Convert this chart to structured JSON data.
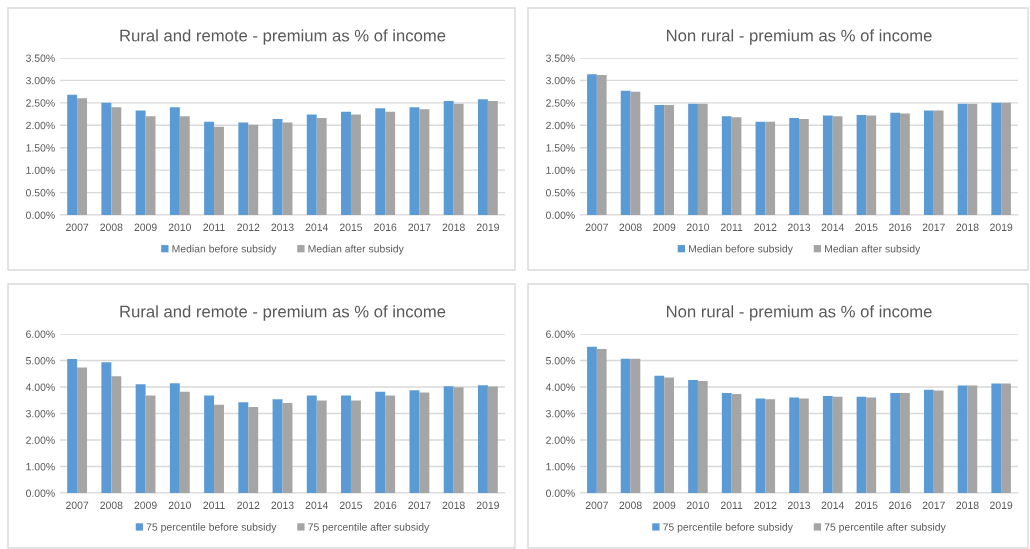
{
  "chart_data": [
    {
      "type": "bar",
      "title": "Rural and remote - premium as % of income",
      "categories": [
        "2007",
        "2008",
        "2009",
        "2010",
        "2011",
        "2012",
        "2013",
        "2014",
        "2015",
        "2016",
        "2017",
        "2018",
        "2019"
      ],
      "series": [
        {
          "name": "Median before subsidy",
          "color": "#5b9bd5",
          "values": [
            2.68,
            2.5,
            2.33,
            2.4,
            2.08,
            2.06,
            2.14,
            2.24,
            2.3,
            2.38,
            2.4,
            2.54,
            2.58
          ]
        },
        {
          "name": "Median after subsidy",
          "color": "#a5a5a5",
          "values": [
            2.6,
            2.4,
            2.2,
            2.2,
            1.97,
            2.01,
            2.06,
            2.16,
            2.24,
            2.3,
            2.36,
            2.48,
            2.54
          ]
        }
      ],
      "ylim": [
        0,
        3.5
      ],
      "yticks": [
        {
          "value": 0,
          "label": "0.00%"
        },
        {
          "value": 0.5,
          "label": "0.50%"
        },
        {
          "value": 1,
          "label": "1.00%"
        },
        {
          "value": 1.5,
          "label": "1.50%"
        },
        {
          "value": 2,
          "label": "2.00%"
        },
        {
          "value": 2.5,
          "label": "2.50%"
        },
        {
          "value": 3,
          "label": "3.00%"
        },
        {
          "value": 3.5,
          "label": "3.50%"
        }
      ],
      "grid": "y",
      "legend": "bottom"
    },
    {
      "type": "bar",
      "title": "Non rural - premium as % of income",
      "categories": [
        "2007",
        "2008",
        "2009",
        "2010",
        "2011",
        "2012",
        "2013",
        "2014",
        "2015",
        "2016",
        "2017",
        "2018",
        "2019"
      ],
      "series": [
        {
          "name": "Median before subsidy",
          "color": "#5b9bd5",
          "values": [
            3.14,
            2.77,
            2.45,
            2.48,
            2.2,
            2.08,
            2.16,
            2.22,
            2.23,
            2.28,
            2.33,
            2.48,
            2.5
          ]
        },
        {
          "name": "Median after subsidy",
          "color": "#a5a5a5",
          "values": [
            3.12,
            2.75,
            2.45,
            2.48,
            2.18,
            2.08,
            2.14,
            2.2,
            2.22,
            2.26,
            2.33,
            2.48,
            2.5
          ]
        }
      ],
      "ylim": [
        0,
        3.5
      ],
      "yticks": [
        {
          "value": 0,
          "label": "0.00%"
        },
        {
          "value": 0.5,
          "label": "0.50%"
        },
        {
          "value": 1,
          "label": "1.00%"
        },
        {
          "value": 1.5,
          "label": "1.50%"
        },
        {
          "value": 2,
          "label": "2.00%"
        },
        {
          "value": 2.5,
          "label": "2.50%"
        },
        {
          "value": 3,
          "label": "3.00%"
        },
        {
          "value": 3.5,
          "label": "3.50%"
        }
      ],
      "grid": "y",
      "legend": "bottom"
    },
    {
      "type": "bar",
      "title": "Rural and remote - premium as % of income",
      "categories": [
        "2007",
        "2008",
        "2009",
        "2010",
        "2011",
        "2012",
        "2013",
        "2014",
        "2015",
        "2016",
        "2017",
        "2018",
        "2019"
      ],
      "series": [
        {
          "name": "75 percentile before subsidy",
          "color": "#5b9bd5",
          "values": [
            5.06,
            4.93,
            4.1,
            4.14,
            3.68,
            3.42,
            3.54,
            3.68,
            3.68,
            3.82,
            3.88,
            4.03,
            4.07
          ]
        },
        {
          "name": "75 percentile after subsidy",
          "color": "#a5a5a5",
          "values": [
            4.74,
            4.41,
            3.68,
            3.82,
            3.33,
            3.25,
            3.4,
            3.49,
            3.49,
            3.68,
            3.79,
            3.99,
            4.02
          ]
        }
      ],
      "ylim": [
        0,
        6
      ],
      "yticks": [
        {
          "value": 0,
          "label": "0.00%"
        },
        {
          "value": 1,
          "label": "1.00%"
        },
        {
          "value": 2,
          "label": "2.00%"
        },
        {
          "value": 3,
          "label": "3.00%"
        },
        {
          "value": 4,
          "label": "4.00%"
        },
        {
          "value": 5,
          "label": "5.00%"
        },
        {
          "value": 6,
          "label": "6.00%"
        }
      ],
      "grid": "y",
      "legend": "bottom"
    },
    {
      "type": "bar",
      "title": "Non rural - premium as % of income",
      "categories": [
        "2007",
        "2008",
        "2009",
        "2010",
        "2011",
        "2012",
        "2013",
        "2014",
        "2015",
        "2016",
        "2017",
        "2018",
        "2019"
      ],
      "series": [
        {
          "name": "75 percentile before subsidy",
          "color": "#5b9bd5",
          "values": [
            5.52,
            5.07,
            4.42,
            4.26,
            3.77,
            3.57,
            3.6,
            3.66,
            3.63,
            3.77,
            3.9,
            4.06,
            4.13
          ]
        },
        {
          "name": "75 percentile after subsidy",
          "color": "#a5a5a5",
          "values": [
            5.43,
            5.07,
            4.36,
            4.23,
            3.74,
            3.54,
            3.57,
            3.63,
            3.6,
            3.77,
            3.87,
            4.06,
            4.13
          ]
        }
      ],
      "ylim": [
        0,
        6
      ],
      "yticks": [
        {
          "value": 0,
          "label": "0.00%"
        },
        {
          "value": 1,
          "label": "1.00%"
        },
        {
          "value": 2,
          "label": "2.00%"
        },
        {
          "value": 3,
          "label": "3.00%"
        },
        {
          "value": 4,
          "label": "4.00%"
        },
        {
          "value": 5,
          "label": "5.00%"
        },
        {
          "value": 6,
          "label": "6.00%"
        }
      ],
      "grid": "y",
      "legend": "bottom"
    }
  ]
}
